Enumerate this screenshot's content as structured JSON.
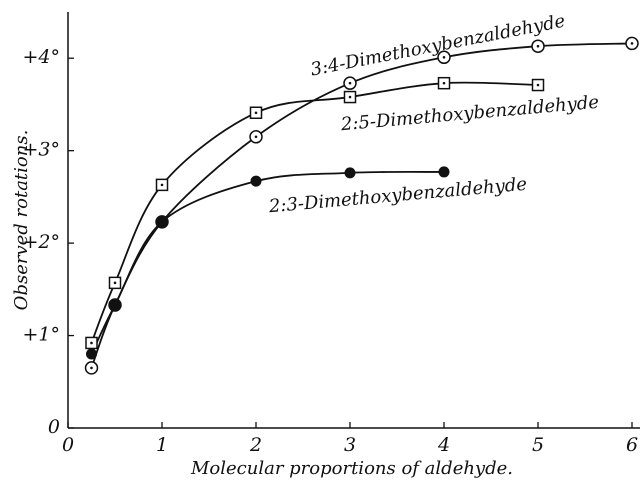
{
  "chart_data": {
    "type": "line",
    "xlabel": "Molecular proportions of aldehyde.",
    "ylabel": "Observed rotations.",
    "xlim": [
      0,
      6
    ],
    "ylim": [
      0,
      4.5
    ],
    "xticks": [
      0,
      1,
      2,
      3,
      4,
      5,
      6
    ],
    "yticks": [
      0,
      {
        "value": 1,
        "label": "+1°"
      },
      {
        "value": 2,
        "label": "+2°"
      },
      {
        "value": 3,
        "label": "+3°"
      },
      {
        "value": 4,
        "label": "+4°"
      }
    ],
    "series": [
      {
        "name": "3:4-Dimethoxybenzaldehyde",
        "color": "#111111",
        "marker": "circle-dot",
        "x": [
          0.25,
          0.5,
          1,
          2,
          3,
          4,
          5,
          6
        ],
        "values": [
          0.65,
          1.33,
          2.23,
          3.15,
          3.73,
          4.01,
          4.13,
          4.16
        ]
      },
      {
        "name": "2:5-Dimethoxybenzaldehyde",
        "color": "#111111",
        "marker": "square-dot",
        "x": [
          0.25,
          0.5,
          1,
          2,
          3,
          4,
          5
        ],
        "values": [
          0.92,
          1.57,
          2.63,
          3.41,
          3.58,
          3.73,
          3.71
        ]
      },
      {
        "name": "2:3-Dimethoxybenzaldehyde",
        "color": "#111111",
        "marker": "filled",
        "x": [
          0.25,
          0.5,
          1,
          2,
          3,
          4
        ],
        "values": [
          0.8,
          1.33,
          2.23,
          2.67,
          2.76,
          2.77
        ]
      }
    ]
  }
}
